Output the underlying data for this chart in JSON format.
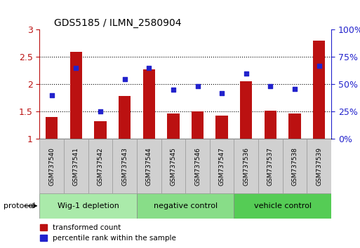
{
  "title": "GDS5185 / ILMN_2580904",
  "samples": [
    "GSM737540",
    "GSM737541",
    "GSM737542",
    "GSM737543",
    "GSM737544",
    "GSM737545",
    "GSM737546",
    "GSM737547",
    "GSM737536",
    "GSM737537",
    "GSM737538",
    "GSM737539"
  ],
  "red_values": [
    1.4,
    2.6,
    1.32,
    1.78,
    2.28,
    1.47,
    1.5,
    1.43,
    2.05,
    1.52,
    1.47,
    2.8
  ],
  "blue_values": [
    40,
    65,
    25,
    55,
    65,
    45,
    48,
    42,
    60,
    48,
    46,
    67
  ],
  "groups": [
    {
      "label": "Wig-1 depletion",
      "start": 0,
      "end": 3
    },
    {
      "label": "negative control",
      "start": 4,
      "end": 7
    },
    {
      "label": "vehicle control",
      "start": 8,
      "end": 11
    }
  ],
  "group_colors": [
    "#aaeaaa",
    "#88dd88",
    "#55cc55"
  ],
  "ylim_left": [
    1.0,
    3.0
  ],
  "ylim_right": [
    0,
    100
  ],
  "yticks_left": [
    1.0,
    1.5,
    2.0,
    2.5,
    3.0
  ],
  "yticks_right": [
    0,
    25,
    50,
    75,
    100
  ],
  "yticklabels_left": [
    "1",
    "1.5",
    "2",
    "2.5",
    "3"
  ],
  "yticklabels_right": [
    "0%",
    "25%",
    "50%",
    "75%",
    "100%"
  ],
  "red_color": "#bb1111",
  "blue_color": "#2222cc",
  "bar_width": 0.5,
  "dotted_lines": [
    1.5,
    2.0,
    2.5
  ],
  "protocol_label": "protocol",
  "legend_red": "transformed count",
  "legend_blue": "percentile rank within the sample",
  "sample_box_color": "#d0d0d0",
  "sample_box_edge": "#999999"
}
